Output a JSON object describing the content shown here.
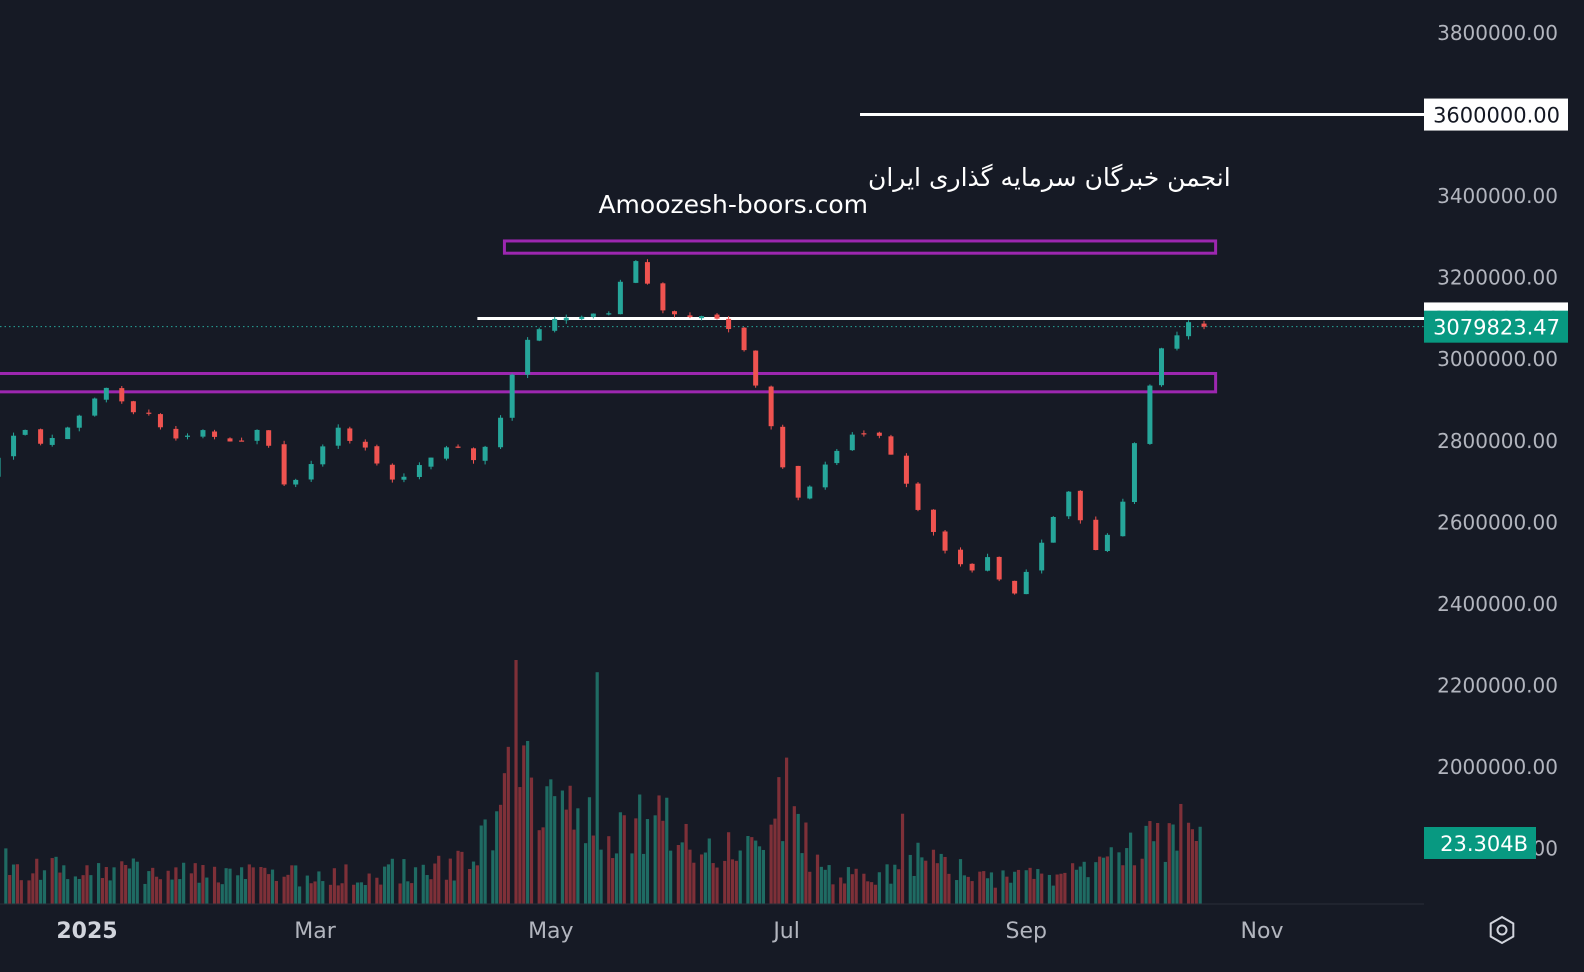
{
  "chart_data": {
    "type": "candlestick",
    "title": "",
    "watermark": {
      "line1": "انجمن خبرگان سرمایه گذاری ایران",
      "line2": "Amoozesh-boors.com"
    },
    "y_axis": {
      "range": [
        1700000,
        3900000
      ],
      "ticks": [
        "3800000.00",
        "3600000.00",
        "3400000.00",
        "3200000.00",
        "3000000.00",
        "2800000.00",
        "2600000.00",
        "2400000.00",
        "2200000.00",
        "2000000.00",
        "1800000.00"
      ]
    },
    "x_axis": {
      "ticks": [
        {
          "label": "2025",
          "date": "2025-01-01",
          "bold": true
        },
        {
          "label": "Mar",
          "date": "2025-03-01",
          "bold": false
        },
        {
          "label": "May",
          "date": "2025-05-01",
          "bold": false
        },
        {
          "label": "Jul",
          "date": "2025-07-01",
          "bold": false
        },
        {
          "label": "Sep",
          "date": "2025-09-01",
          "bold": false
        },
        {
          "label": "Nov",
          "date": "2025-11-01",
          "bold": false
        }
      ]
    },
    "last_price": {
      "value": 3079823.47,
      "label": "3079823.47"
    },
    "last_volume": {
      "label": "23.304B"
    },
    "horizontal_lines": [
      {
        "price": 3600000,
        "label": "3600000.00",
        "start_date": "2025-07-20"
      },
      {
        "price": 3100000,
        "label": "3100000.00",
        "start_date": "2025-04-12"
      }
    ],
    "zones": [
      {
        "start_date": "2025-04-19",
        "end_date": "2025-10-20",
        "low": 3260000,
        "high": 3290000
      },
      {
        "start_date": "2024-12-04",
        "end_date": "2025-10-20",
        "low": 2920000,
        "high": 2965000
      }
    ],
    "candle_path": [
      [
        "2024-11-29",
        2560000
      ],
      [
        "2024-12-05",
        2690000
      ],
      [
        "2024-12-12",
        2730000
      ],
      [
        "2024-12-18",
        2850000
      ],
      [
        "2024-12-24",
        2790000
      ],
      [
        "2025-01-02",
        2840000
      ],
      [
        "2025-01-09",
        2950000
      ],
      [
        "2025-01-15",
        2880000
      ],
      [
        "2025-01-22",
        2860000
      ],
      [
        "2025-01-29",
        2790000
      ],
      [
        "2025-02-04",
        2830000
      ],
      [
        "2025-02-12",
        2780000
      ],
      [
        "2025-02-19",
        2830000
      ],
      [
        "2025-02-25",
        2690000
      ],
      [
        "2025-03-03",
        2730000
      ],
      [
        "2025-03-10",
        2840000
      ],
      [
        "2025-03-18",
        2780000
      ],
      [
        "2025-03-25",
        2700000
      ],
      [
        "2025-04-01",
        2740000
      ],
      [
        "2025-04-09",
        2800000
      ],
      [
        "2025-04-16",
        2750000
      ],
      [
        "2025-04-22",
        2870000
      ],
      [
        "2025-04-28",
        3050000
      ],
      [
        "2025-05-06",
        3110000
      ],
      [
        "2025-05-13",
        3100000
      ],
      [
        "2025-05-20",
        3120000
      ],
      [
        "2025-05-26",
        3245000
      ],
      [
        "2025-06-02",
        3130000
      ],
      [
        "2025-06-10",
        3110000
      ],
      [
        "2025-06-18",
        3100000
      ],
      [
        "2025-06-25",
        3000000
      ],
      [
        "2025-07-01",
        2810000
      ],
      [
        "2025-07-08",
        2660000
      ],
      [
        "2025-07-15",
        2740000
      ],
      [
        "2025-07-23",
        2830000
      ],
      [
        "2025-07-30",
        2810000
      ],
      [
        "2025-08-06",
        2650000
      ],
      [
        "2025-08-13",
        2560000
      ],
      [
        "2025-08-20",
        2470000
      ],
      [
        "2025-08-26",
        2510000
      ],
      [
        "2025-09-02",
        2410000
      ],
      [
        "2025-09-09",
        2560000
      ],
      [
        "2025-09-16",
        2680000
      ],
      [
        "2025-09-23",
        2520000
      ],
      [
        "2025-09-30",
        2650000
      ],
      [
        "2025-10-06",
        2920000
      ],
      [
        "2025-10-11",
        3040000
      ],
      [
        "2025-10-17",
        3080000
      ]
    ],
    "volume": {
      "scale_max": 1.0,
      "points": [
        [
          "2024-11-29",
          0.18
        ],
        [
          "2024-12-13",
          0.16
        ],
        [
          "2025-01-05",
          0.14
        ],
        [
          "2025-02-05",
          0.12
        ],
        [
          "2025-03-05",
          0.11
        ],
        [
          "2025-04-10",
          0.16
        ],
        [
          "2025-04-24",
          0.55
        ],
        [
          "2025-05-05",
          0.4
        ],
        [
          "2025-05-15",
          0.3
        ],
        [
          "2025-05-25",
          0.34
        ],
        [
          "2025-06-05",
          0.3
        ],
        [
          "2025-06-20",
          0.2
        ],
        [
          "2025-07-01",
          0.42
        ],
        [
          "2025-07-10",
          0.14
        ],
        [
          "2025-07-25",
          0.11
        ],
        [
          "2025-08-05",
          0.2
        ],
        [
          "2025-08-20",
          0.11
        ],
        [
          "2025-09-05",
          0.11
        ],
        [
          "2025-09-20",
          0.14
        ],
        [
          "2025-10-01",
          0.26
        ],
        [
          "2025-10-10",
          0.3
        ],
        [
          "2025-10-17",
          0.23
        ]
      ],
      "spikes": [
        [
          "2025-01-13",
          0.18
        ],
        [
          "2025-04-17",
          0.38
        ],
        [
          "2025-04-22",
          1.0
        ],
        [
          "2025-04-24",
          0.65
        ],
        [
          "2025-05-14",
          0.95
        ],
        [
          "2025-06-29",
          0.52
        ],
        [
          "2025-07-02",
          0.6
        ],
        [
          "2025-08-01",
          0.37
        ],
        [
          "2025-10-03",
          0.34
        ],
        [
          "2025-10-12",
          0.41
        ]
      ]
    },
    "colors": {
      "background": "#161a25",
      "up": "#26a69a",
      "down": "#ef5350",
      "volume_up": "#1f6b63",
      "volume_down": "#7e3038",
      "zone": "#9c27b0",
      "line": "#ffffff",
      "axis_text": "#b2b5be",
      "last_price_bg": "#089981"
    },
    "grid": false
  },
  "icons": {
    "settings": "gear-hexagon-icon"
  }
}
